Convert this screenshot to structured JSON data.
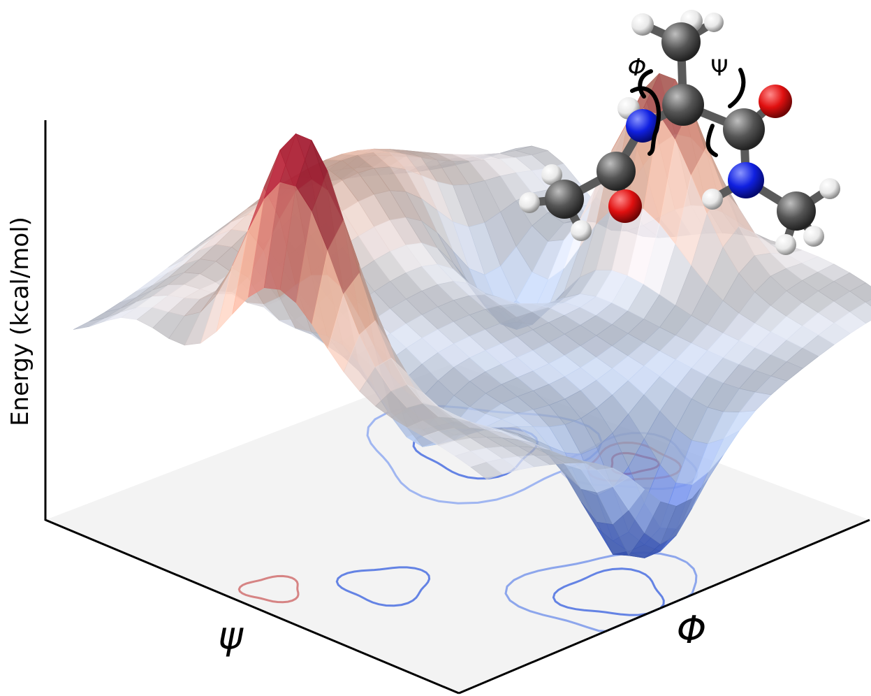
{
  "chart_data": {
    "type": "surface",
    "title": "",
    "xlabel": "Φ",
    "ylabel": "ψ",
    "zlabel": "Energy (kcal/mol)",
    "colormap": [
      "#3b5fd9",
      "#b8cef5",
      "#eaeaf0",
      "#f2b49a",
      "#b8243a"
    ],
    "floor_color": "#f3f3f3",
    "grid": false,
    "surface_features": [
      {
        "name": "peak-left",
        "phi": -0.85,
        "psi": 0.05,
        "z": 1.0
      },
      {
        "name": "peak-right",
        "phi": 0.75,
        "psi": -0.1,
        "z": 0.78
      },
      {
        "name": "basin-front",
        "phi": -0.05,
        "psi": -0.8,
        "z": 0.05
      },
      {
        "name": "basin-right",
        "phi": 0.45,
        "psi": 0.35,
        "z": 0.12
      }
    ]
  },
  "molecule": {
    "labels": {
      "phi": "Φ",
      "psi": "Ψ"
    },
    "atom_colors": {
      "C": "#555555",
      "N": "#1020e0",
      "O": "#e01010",
      "H": "#ffffff"
    }
  }
}
